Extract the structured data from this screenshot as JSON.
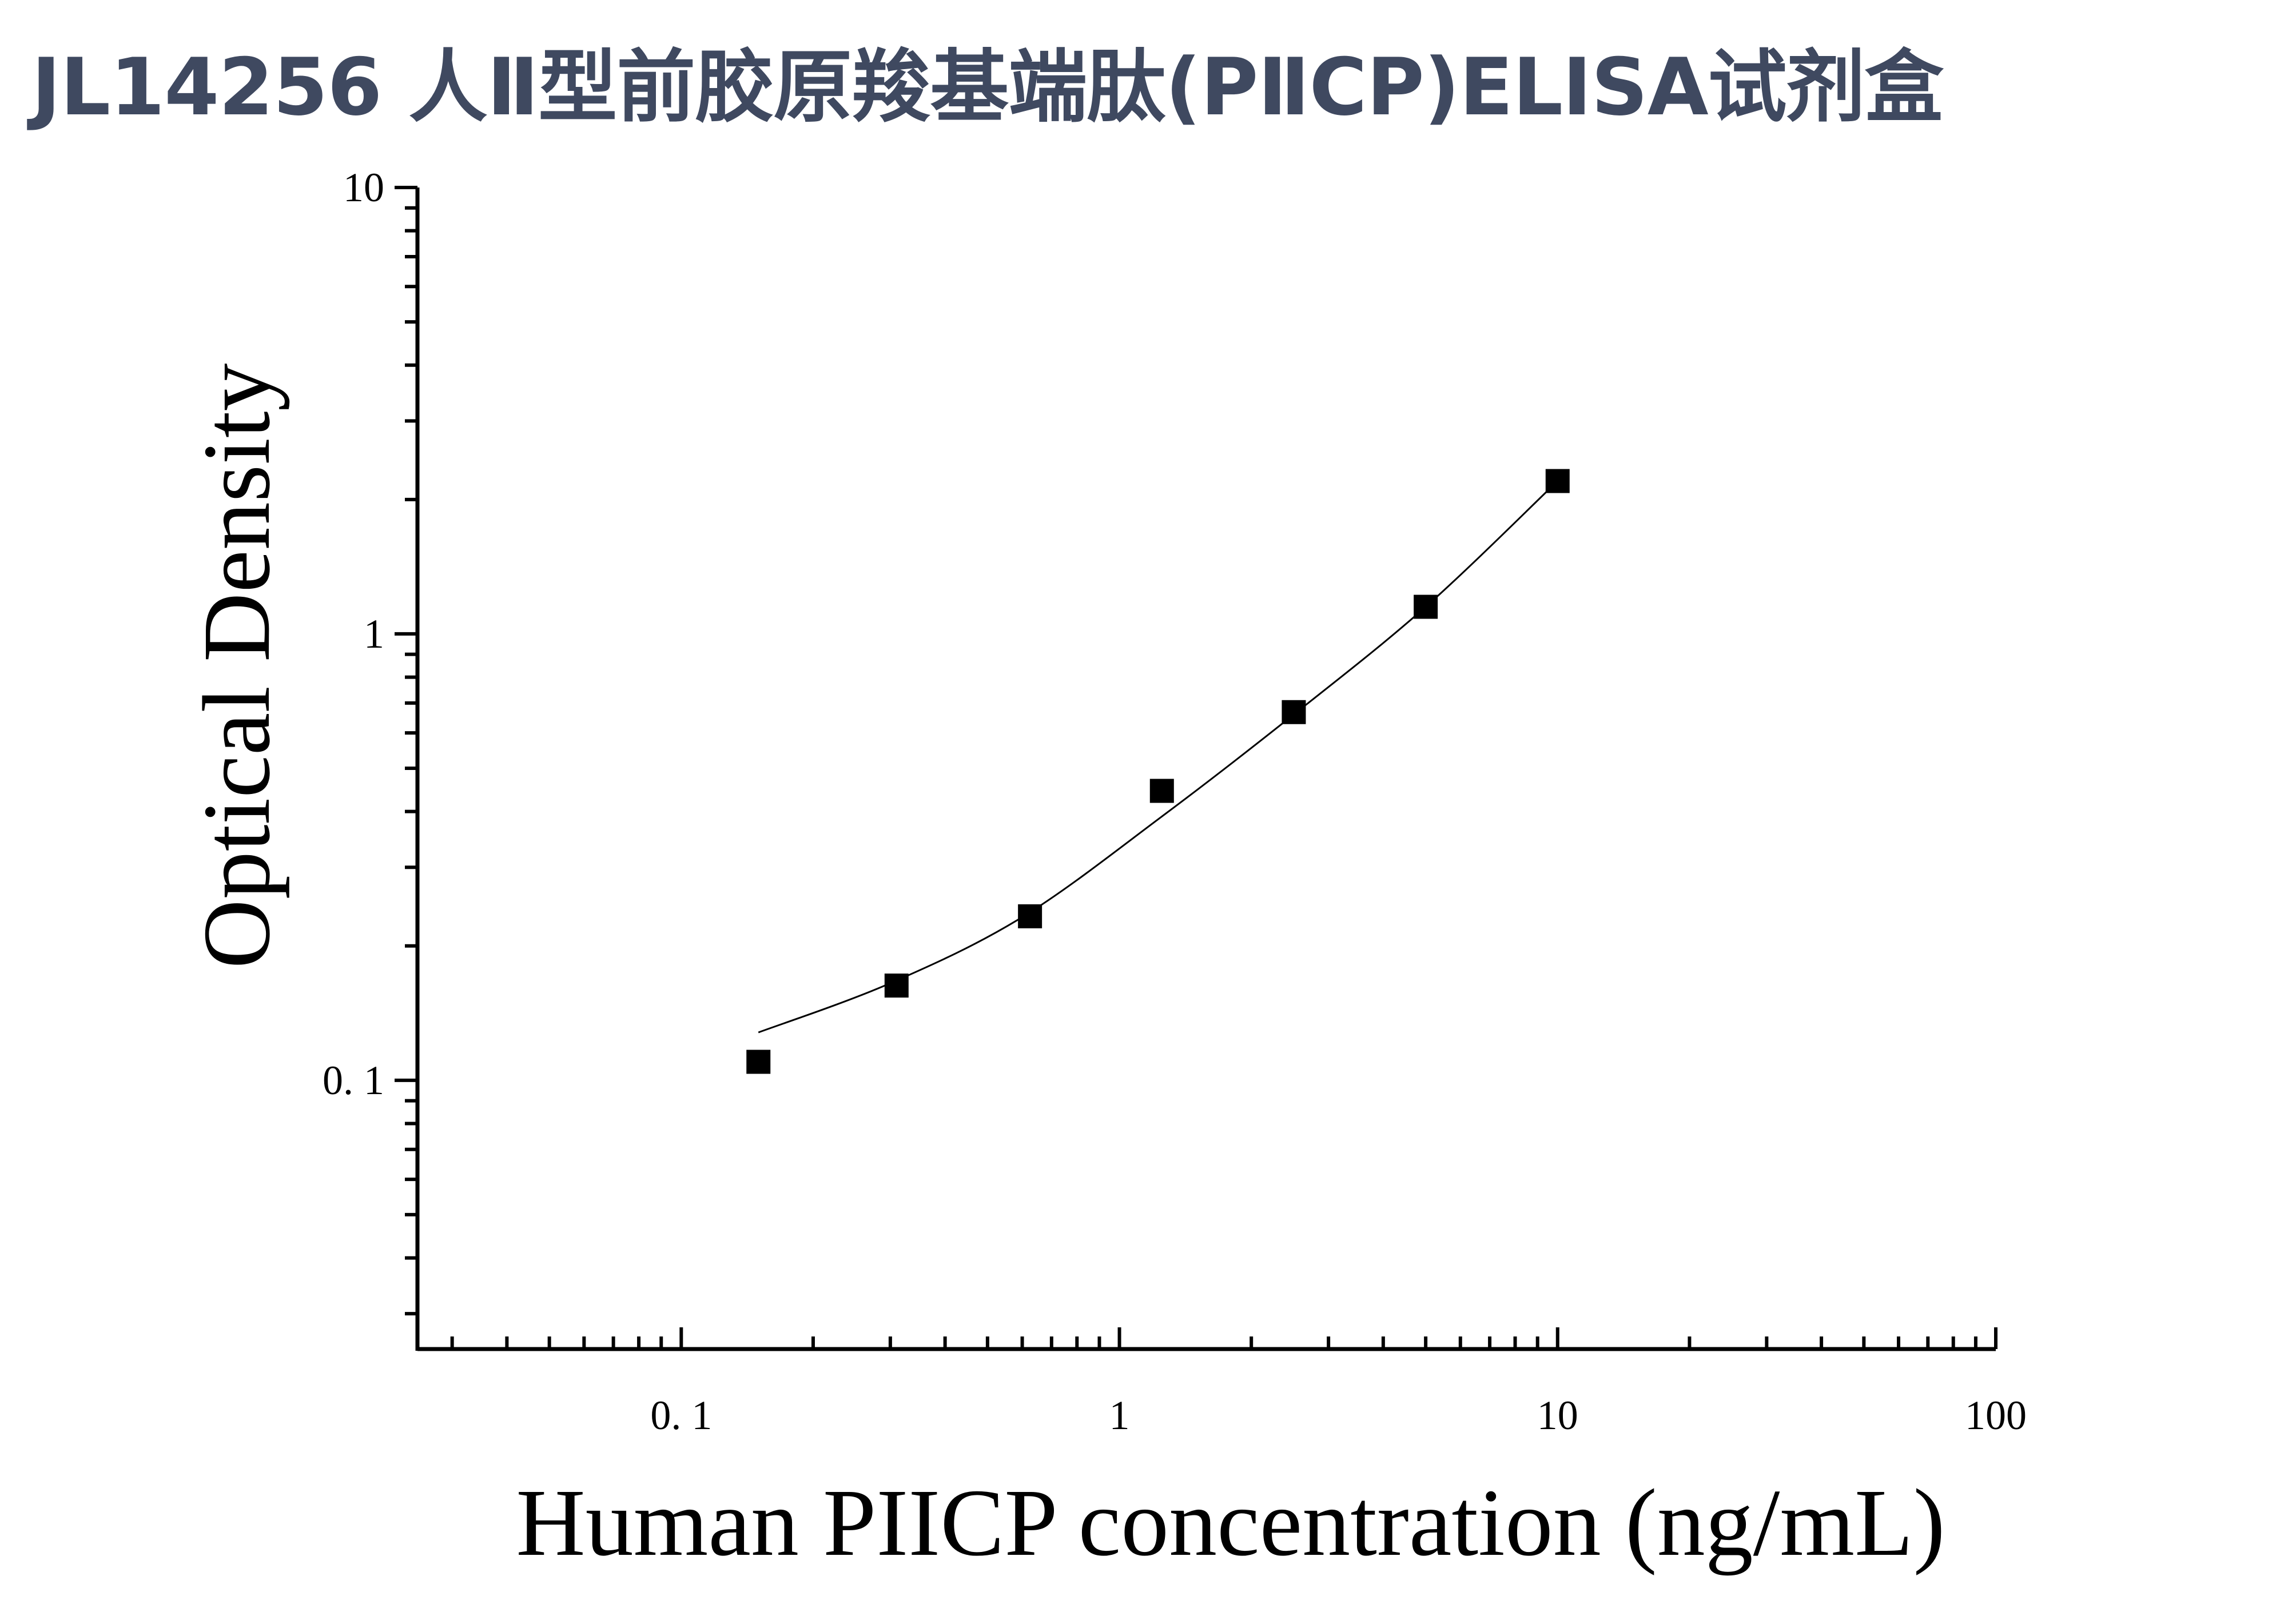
{
  "page": {
    "title": "JL14256 人Ⅱ型前胶原羧基端肽(PⅡCP)ELISA试剂盒",
    "title_color": "#3f4960"
  },
  "chart_data": {
    "type": "scatter",
    "xlabel": "Human PIICP concentration (ng/mL)",
    "ylabel": "Optical Density",
    "x_scale": "log",
    "y_scale": "log",
    "xlim": [
      0.025,
      100
    ],
    "ylim": [
      0.025,
      10
    ],
    "x_ticks": [
      {
        "value": 0.1,
        "label": "0. 1"
      },
      {
        "value": 1,
        "label": "1"
      },
      {
        "value": 10,
        "label": "10"
      },
      {
        "value": 100,
        "label": "100"
      }
    ],
    "y_ticks": [
      {
        "value": 0.1,
        "label": "0. 1"
      },
      {
        "value": 1,
        "label": "1"
      },
      {
        "value": 10,
        "label": "10"
      }
    ],
    "grid": false,
    "legend": "none",
    "marker": "square",
    "marker_color": "#000000",
    "points": [
      {
        "x": 0.15,
        "y": 0.11
      },
      {
        "x": 0.31,
        "y": 0.163
      },
      {
        "x": 0.625,
        "y": 0.233
      },
      {
        "x": 1.25,
        "y": 0.445
      },
      {
        "x": 2.5,
        "y": 0.668
      },
      {
        "x": 5,
        "y": 1.15
      },
      {
        "x": 10,
        "y": 2.2
      }
    ],
    "fit_curve": [
      {
        "x": 0.15,
        "y": 0.128
      },
      {
        "x": 0.3,
        "y": 0.165
      },
      {
        "x": 0.6,
        "y": 0.232
      },
      {
        "x": 1.25,
        "y": 0.39
      },
      {
        "x": 2.5,
        "y": 0.66
      },
      {
        "x": 5,
        "y": 1.15
      },
      {
        "x": 10,
        "y": 2.2
      }
    ]
  }
}
